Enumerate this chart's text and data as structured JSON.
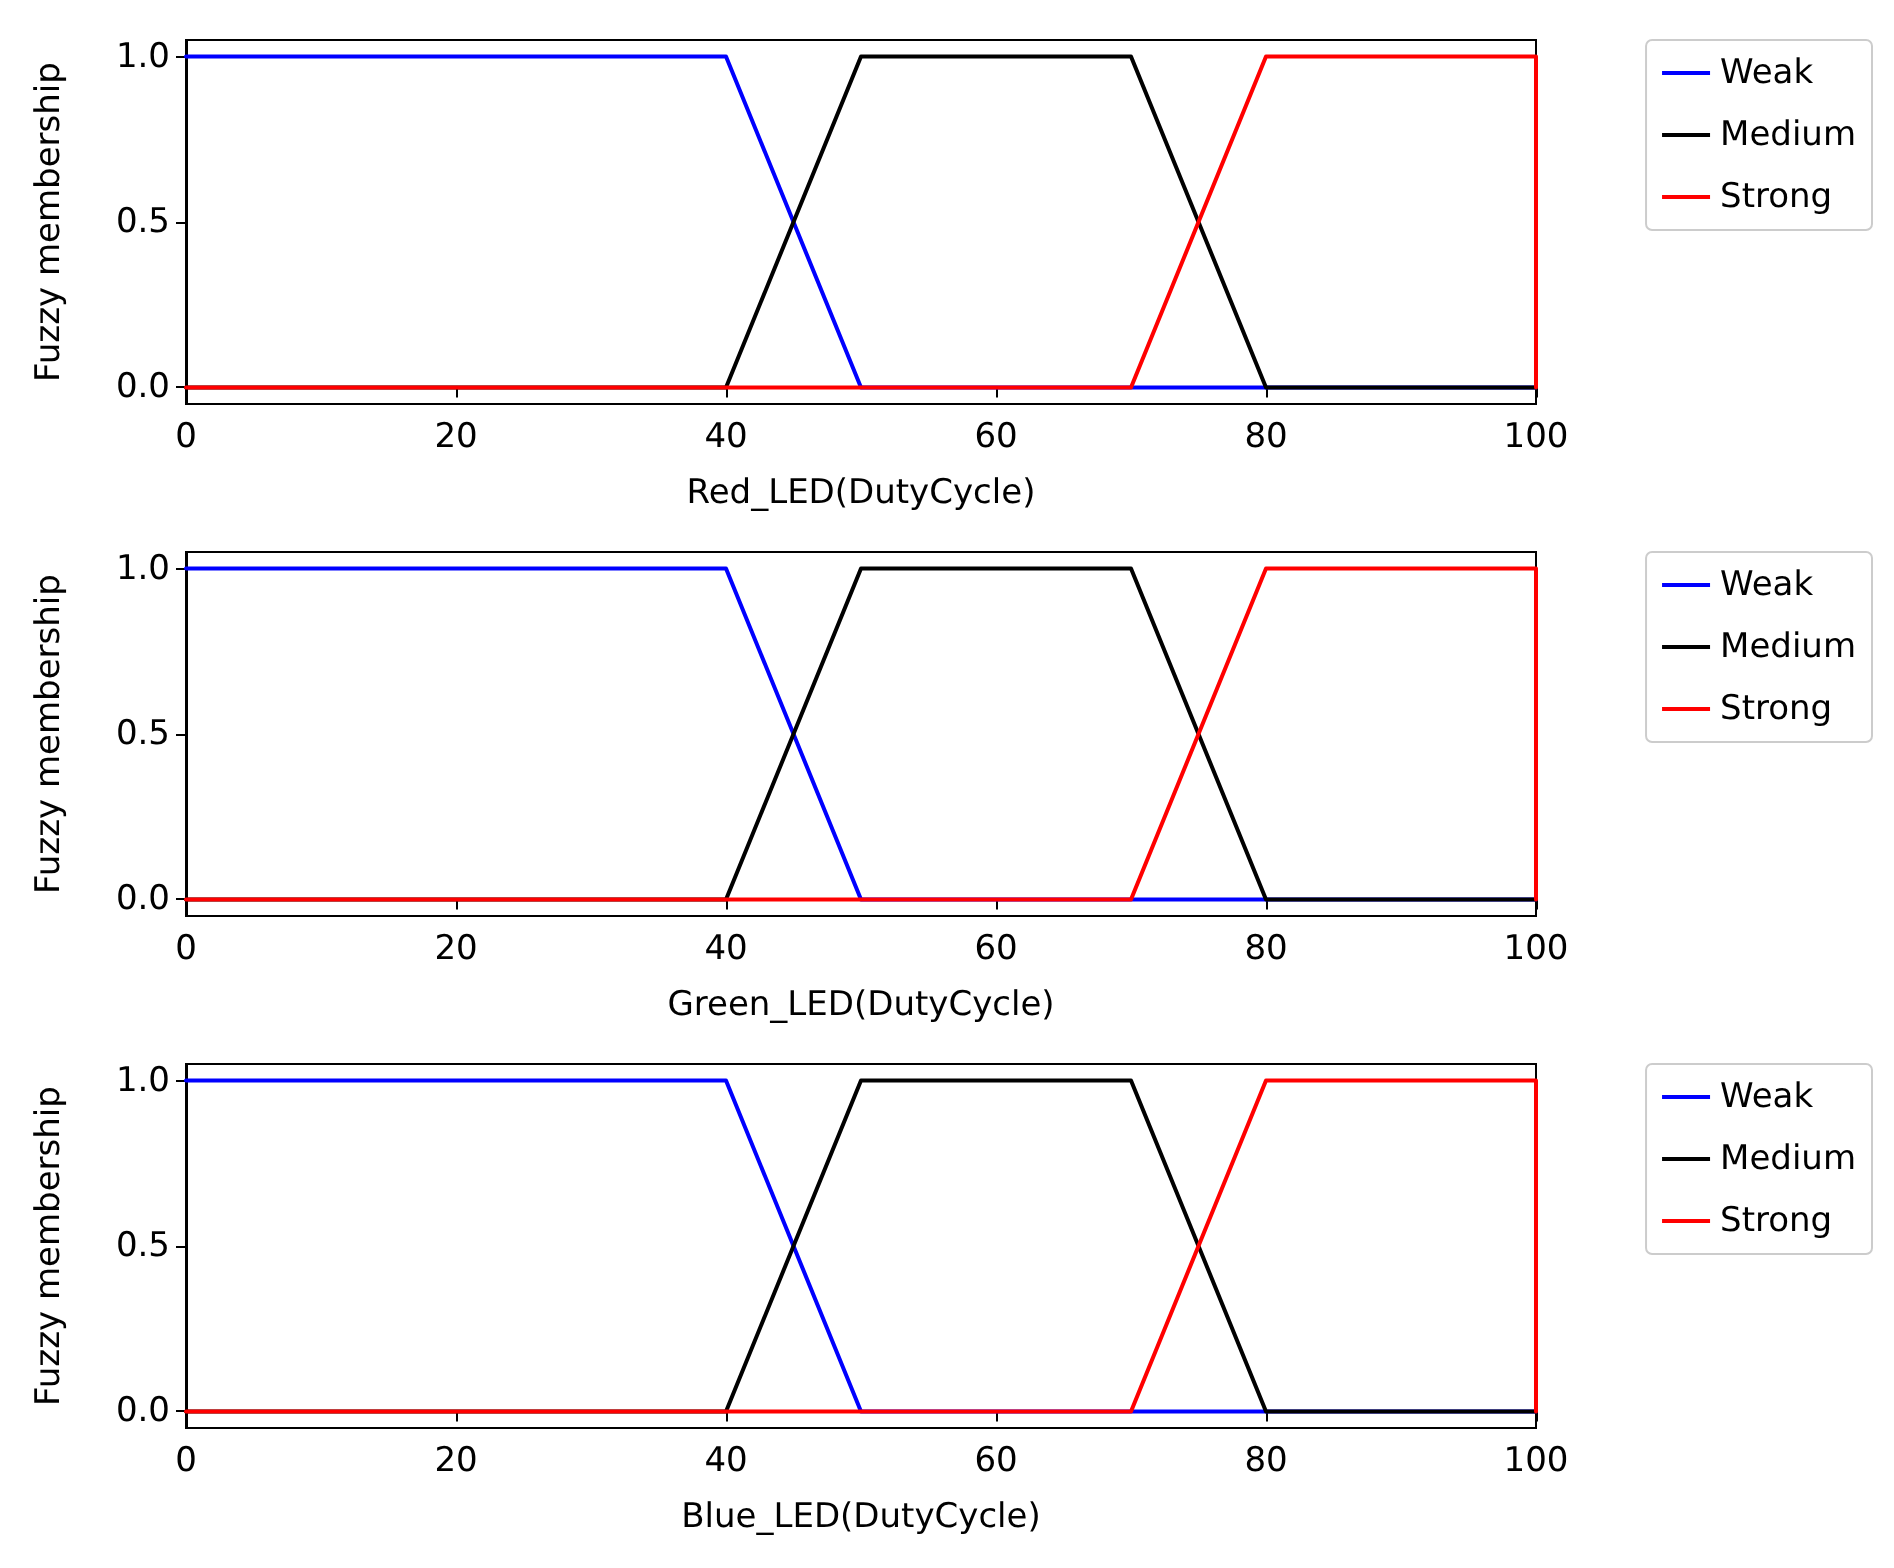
{
  "chart_data": [
    {
      "type": "line",
      "xlabel": "Red_LED(DutyCycle)",
      "ylabel": "Fuzzy membership",
      "xlim": [
        0,
        100
      ],
      "xticks": [
        0,
        20,
        40,
        60,
        80,
        100
      ],
      "ylim": [
        -0.05,
        1.05
      ],
      "yticks": [
        {
          "value": 0,
          "label": "0.0"
        },
        {
          "value": 0.5,
          "label": "0.5"
        },
        {
          "value": 1,
          "label": "1.0"
        }
      ],
      "legend": "right",
      "grid": false,
      "marker": "none",
      "series": [
        {
          "name": "Weak",
          "color": "#0000ff",
          "x": [
            0,
            40,
            50,
            100
          ],
          "values": [
            1,
            1,
            0,
            0
          ]
        },
        {
          "name": "Medium",
          "color": "#000000",
          "x": [
            0,
            40,
            50,
            70,
            80,
            100
          ],
          "values": [
            0,
            0,
            1,
            1,
            0,
            0
          ]
        },
        {
          "name": "Strong",
          "color": "#ff0000",
          "x": [
            0,
            70,
            80,
            100,
            100
          ],
          "values": [
            0,
            0,
            1,
            1,
            0
          ]
        }
      ]
    },
    {
      "type": "line",
      "xlabel": "Green_LED(DutyCycle)",
      "ylabel": "Fuzzy membership",
      "xlim": [
        0,
        100
      ],
      "xticks": [
        0,
        20,
        40,
        60,
        80,
        100
      ],
      "ylim": [
        -0.05,
        1.05
      ],
      "yticks": [
        {
          "value": 0,
          "label": "0.0"
        },
        {
          "value": 0.5,
          "label": "0.5"
        },
        {
          "value": 1,
          "label": "1.0"
        }
      ],
      "legend": "right",
      "grid": false,
      "marker": "none",
      "series": [
        {
          "name": "Weak",
          "color": "#0000ff",
          "x": [
            0,
            40,
            50,
            100
          ],
          "values": [
            1,
            1,
            0,
            0
          ]
        },
        {
          "name": "Medium",
          "color": "#000000",
          "x": [
            0,
            40,
            50,
            70,
            80,
            100
          ],
          "values": [
            0,
            0,
            1,
            1,
            0,
            0
          ]
        },
        {
          "name": "Strong",
          "color": "#ff0000",
          "x": [
            0,
            70,
            80,
            100,
            100
          ],
          "values": [
            0,
            0,
            1,
            1,
            0
          ]
        }
      ]
    },
    {
      "type": "line",
      "xlabel": "Blue_LED(DutyCycle)",
      "ylabel": "Fuzzy membership",
      "xlim": [
        0,
        100
      ],
      "xticks": [
        0,
        20,
        40,
        60,
        80,
        100
      ],
      "ylim": [
        -0.05,
        1.05
      ],
      "yticks": [
        {
          "value": 0,
          "label": "0.0"
        },
        {
          "value": 0.5,
          "label": "0.5"
        },
        {
          "value": 1,
          "label": "1.0"
        }
      ],
      "legend": "right",
      "grid": false,
      "marker": "none",
      "series": [
        {
          "name": "Weak",
          "color": "#0000ff",
          "x": [
            0,
            40,
            50,
            100
          ],
          "values": [
            1,
            1,
            0,
            0
          ]
        },
        {
          "name": "Medium",
          "color": "#000000",
          "x": [
            0,
            40,
            50,
            70,
            80,
            100
          ],
          "values": [
            0,
            0,
            1,
            1,
            0,
            0
          ]
        },
        {
          "name": "Strong",
          "color": "#ff0000",
          "x": [
            0,
            70,
            80,
            100,
            100
          ],
          "values": [
            0,
            0,
            1,
            1,
            0
          ]
        }
      ]
    }
  ]
}
